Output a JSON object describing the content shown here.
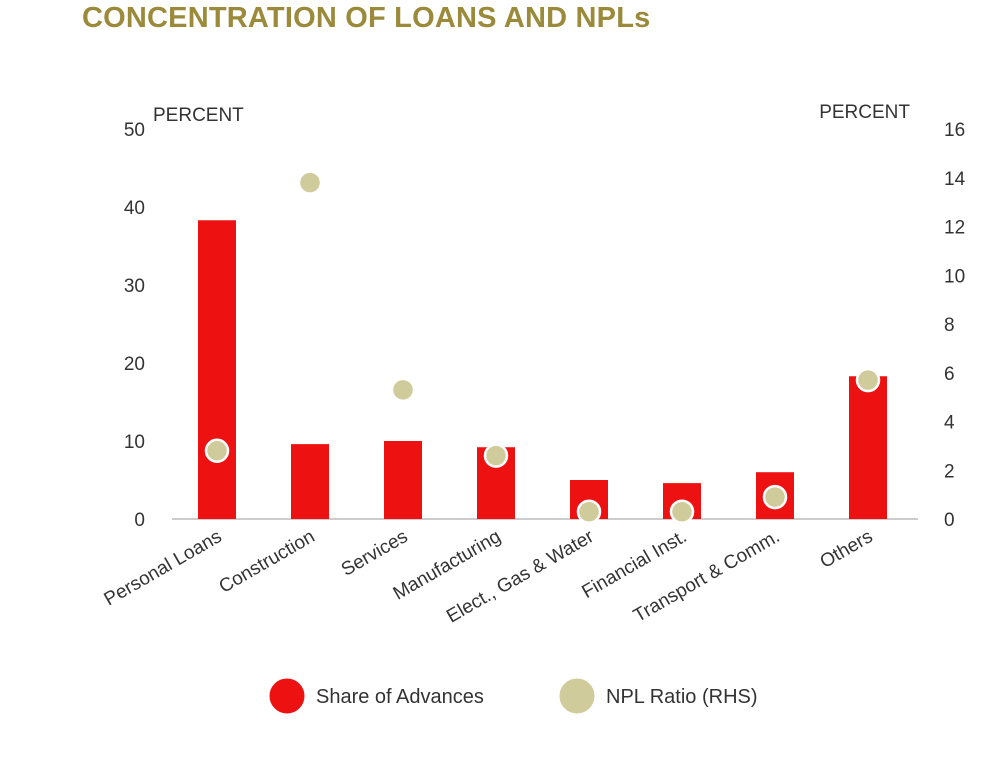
{
  "title": "CONCENTRATION OF LOANS AND NPLs",
  "colors": {
    "bar": "#ee1111",
    "dot": "#cfcb9a",
    "dot_stroke": "#ffffff",
    "title": "#9a8a3a",
    "axis": "#999999"
  },
  "chart_data": {
    "type": "bar",
    "title": "CONCENTRATION OF LOANS AND NPLs",
    "categories": [
      "Personal Loans",
      "Construction",
      "Services",
      "Manufacturing",
      "Elect., Gas & Water",
      "Financial Inst.",
      "Transport & Comm.",
      "Others"
    ],
    "series": [
      {
        "name": "Share of Advances",
        "axis": "left",
        "kind": "bar",
        "values": [
          38.3,
          9.6,
          10.0,
          9.2,
          5.0,
          4.6,
          6.0,
          18.3
        ]
      },
      {
        "name": "NPL Ratio (RHS)",
        "axis": "right",
        "kind": "scatter",
        "values": [
          2.8,
          13.8,
          5.3,
          2.6,
          0.3,
          0.3,
          0.9,
          5.7
        ]
      }
    ],
    "ylabel_left": "PERCENT",
    "ylabel_right": "PERCENT",
    "ylim_left": [
      0,
      50
    ],
    "ylim_right": [
      0,
      16
    ],
    "yticks_left": [
      "0",
      "10",
      "20",
      "30",
      "40",
      "50"
    ],
    "yticks_right": [
      "0",
      "2",
      "4",
      "6",
      "8",
      "10",
      "12",
      "14",
      "16"
    ],
    "legend": [
      "Share of Advances",
      "NPL Ratio (RHS)"
    ],
    "legend_position": "bottom",
    "grid": false
  }
}
